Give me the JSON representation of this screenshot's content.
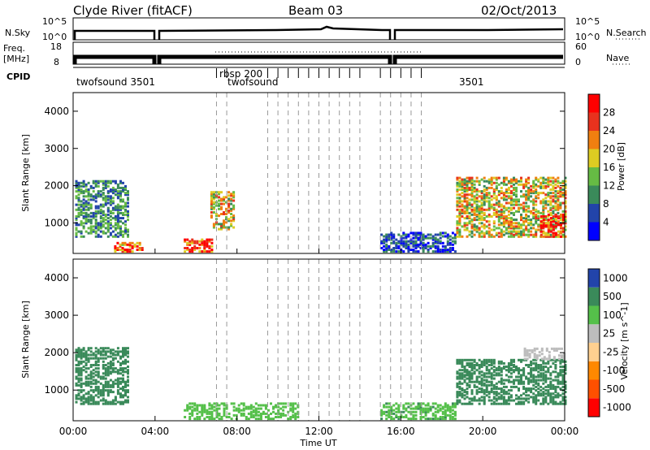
{
  "header": {
    "station": "Clyde River (fitACF)",
    "beam": "Beam 03",
    "date": "02/Oct/2013"
  },
  "strip_panels": {
    "nsky": {
      "label": "N.Sky",
      "tick_top": "10^5",
      "tick_bottom": "10^0",
      "right_label": "N.Search",
      "right_tick_top": "10^5",
      "right_tick_bottom": "10^0"
    },
    "freq": {
      "label_line1": "Freq.",
      "label_line2": "[MHz]",
      "tick_top": "18",
      "tick_bottom": "8",
      "right_label": "Nave",
      "right_tick_top": "60",
      "right_tick_bottom": "0"
    },
    "cpid": {
      "label": "CPID",
      "programs": [
        "twofsound 3501",
        "rbsp 200",
        "twofsound",
        "3501"
      ]
    }
  },
  "chart_data": [
    {
      "type": "heatmap",
      "title": "",
      "xlabel": "Time UT",
      "ylabel": "Slant Range [km]",
      "x_ticks": [
        "00:00",
        "04:00",
        "08:00",
        "12:00",
        "16:00",
        "20:00",
        "00:00"
      ],
      "y_ticks": [
        1000,
        2000,
        3000,
        4000
      ],
      "ylim": [
        180,
        4500
      ],
      "quantity": "Power",
      "colorbar_label": "Power [dB]",
      "colorbar_ticks": [
        4,
        8,
        12,
        16,
        20,
        24,
        28
      ],
      "colorbar_colors": [
        "#0000ff",
        "#2244aa",
        "#3a8a5a",
        "#66bb44",
        "#ddcc22",
        "#f07f10",
        "#e8321e",
        "#ff0000"
      ],
      "echo_regions": [
        {
          "t_start": 0.1,
          "t_end": 2.7,
          "r_low": 600,
          "r_high": 2100,
          "value": 10
        },
        {
          "t_start": 2.0,
          "t_end": 3.4,
          "r_low": 200,
          "r_high": 450,
          "value": 27
        },
        {
          "t_start": 5.4,
          "t_end": 6.8,
          "r_low": 200,
          "r_high": 550,
          "value": 28
        },
        {
          "t_start": 6.7,
          "t_end": 7.9,
          "r_low": 800,
          "r_high": 1800,
          "value": 18
        },
        {
          "t_start": 15.0,
          "t_end": 18.7,
          "r_low": 200,
          "r_high": 700,
          "value": 6
        },
        {
          "t_start": 18.7,
          "t_end": 24.0,
          "r_low": 600,
          "r_high": 2200,
          "value": 18
        },
        {
          "t_start": 22.8,
          "t_end": 24.0,
          "r_low": 600,
          "r_high": 1200,
          "value": 28
        }
      ]
    },
    {
      "type": "heatmap",
      "title": "",
      "xlabel": "Time UT",
      "ylabel": "Slant Range [km]",
      "x_ticks": [
        "00:00",
        "04:00",
        "08:00",
        "12:00",
        "16:00",
        "20:00",
        "00:00"
      ],
      "y_ticks": [
        1000,
        2000,
        3000,
        4000
      ],
      "ylim": [
        180,
        4500
      ],
      "quantity": "Velocity",
      "colorbar_label": "Velocity [m s^-1]",
      "colorbar_ticks": [
        "1000",
        "500",
        "100",
        "25",
        "-25",
        "-100",
        "-500",
        "-1000"
      ],
      "colorbar_colors": [
        "#2244aa",
        "#3a8a5a",
        "#55c04a",
        "#bdbdbd",
        "#ffd090",
        "#ff8800",
        "#ff5000",
        "#ff0000"
      ],
      "echo_regions": [
        {
          "t_start": 0.1,
          "t_end": 2.7,
          "r_low": 600,
          "r_high": 2100,
          "value": 300
        },
        {
          "t_start": 5.4,
          "t_end": 11.0,
          "r_low": 200,
          "r_high": 650,
          "value": 60
        },
        {
          "t_start": 15.0,
          "t_end": 18.7,
          "r_low": 200,
          "r_high": 650,
          "value": 80
        },
        {
          "t_start": 18.7,
          "t_end": 24.0,
          "r_low": 600,
          "r_high": 1800,
          "value": 300
        },
        {
          "t_start": 22.0,
          "t_end": 24.0,
          "r_low": 1800,
          "r_high": 2100,
          "value": 0
        }
      ]
    }
  ]
}
